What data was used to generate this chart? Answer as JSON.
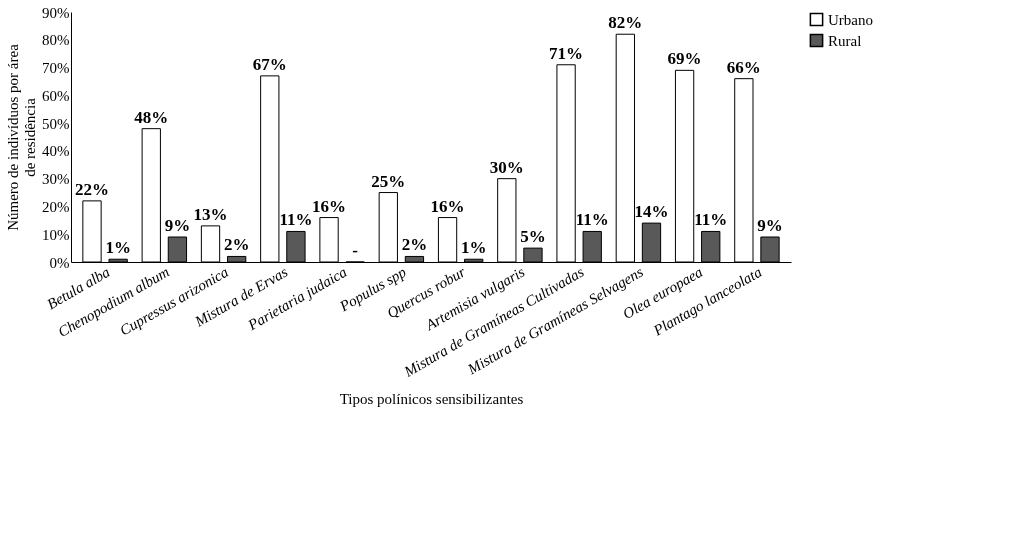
{
  "chart_data": {
    "type": "bar",
    "xlabel": "Tipos polínicos sensibilizantes",
    "ylabel": "Número de indivíduos por área de residência",
    "categories": [
      "Betula alba",
      "Chenopodium album",
      "Cupressus arizonica",
      "Mistura de Ervas",
      "Parietaria judaica",
      "Populus spp",
      "Quercus robur",
      "Artemisia vulgaris",
      "Mistura de Gramíneas Cultivadas",
      "Mistura de Gramíneas Selvagens",
      "Olea europaea",
      "Plantago lanceolata"
    ],
    "series": [
      {
        "name": "Urbano",
        "color": "#ffffff",
        "values": [
          22,
          48,
          13,
          67,
          16,
          25,
          16,
          30,
          71,
          82,
          69,
          66
        ],
        "value_labels": [
          "22%",
          "48%",
          "13%",
          "67%",
          "16%",
          "25%",
          "16%",
          "30%",
          "71%",
          "82%",
          "69%",
          "66%"
        ]
      },
      {
        "name": "Rural",
        "color": "#595959",
        "values": [
          1,
          9,
          2,
          11,
          0,
          2,
          1,
          5,
          11,
          14,
          11,
          9
        ],
        "value_labels": [
          "1%",
          "9%",
          "2%",
          "11%",
          "-",
          "2%",
          "1%",
          "5%",
          "11%",
          "14%",
          "11%",
          "9%"
        ]
      }
    ],
    "ylim": [
      0,
      90
    ],
    "yticks": [
      {
        "value": 0,
        "label": "0%"
      },
      {
        "value": 10,
        "label": "10%"
      },
      {
        "value": 20,
        "label": "20%"
      },
      {
        "value": 30,
        "label": "30%"
      },
      {
        "value": 40,
        "label": "40%"
      },
      {
        "value": 50,
        "label": "50%"
      },
      {
        "value": 60,
        "label": "60%"
      },
      {
        "value": 70,
        "label": "70%"
      },
      {
        "value": 80,
        "label": "80%"
      },
      {
        "value": 90,
        "label": "90%"
      }
    ],
    "grid": false,
    "legend": "right"
  }
}
